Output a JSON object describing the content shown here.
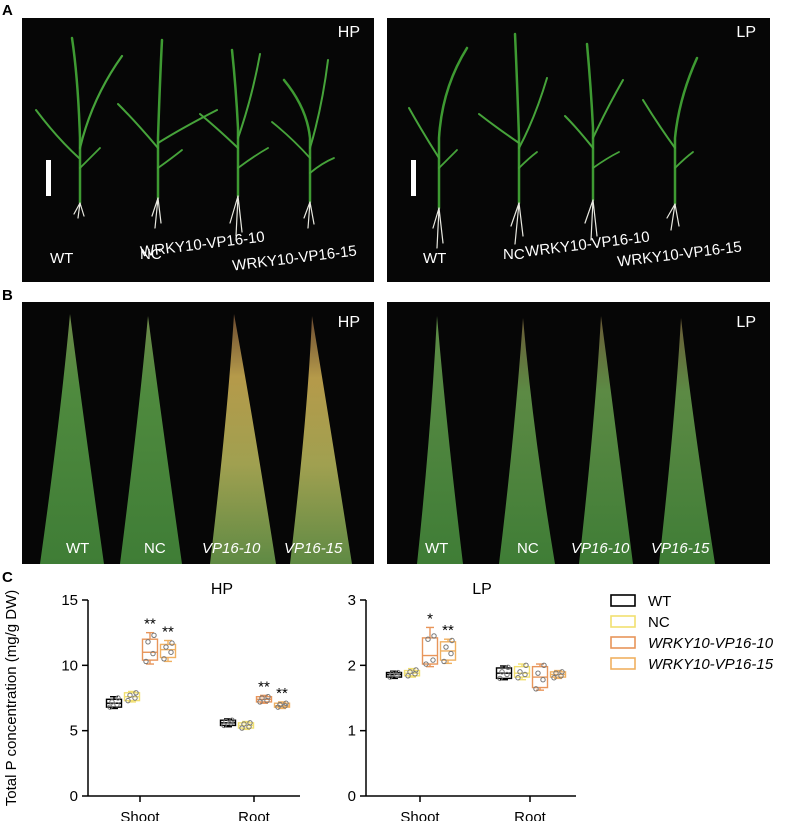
{
  "panel_labels": {
    "a": "A",
    "b": "B",
    "c": "C"
  },
  "panel_a": {
    "left": {
      "condition": "HP",
      "plants": [
        "WT",
        "NC",
        "WRKY10-VP16-10",
        "WRKY10-VP16-15"
      ]
    },
    "right": {
      "condition": "LP",
      "plants": [
        "WT",
        "NC",
        "WRKY10-VP16-10",
        "WRKY10-VP16-15"
      ]
    }
  },
  "panel_b": {
    "left": {
      "condition": "HP",
      "leaves": [
        "WT",
        "NC",
        "VP16-10",
        "VP16-15"
      ]
    },
    "right": {
      "condition": "LP",
      "leaves": [
        "WT",
        "NC",
        "VP16-10",
        "VP16-15"
      ]
    }
  },
  "chart_data": [
    {
      "type": "box",
      "title": "HP",
      "ylabel": "Total P concentration (mg/g DW)",
      "categories": [
        "Shoot",
        "Root"
      ],
      "ylim": [
        0,
        15
      ],
      "yticks": [
        0,
        5,
        10,
        15
      ],
      "series": [
        {
          "name": "WT",
          "color": "#000000",
          "boxes": [
            {
              "min": 6.7,
              "q1": 6.8,
              "median": 7.1,
              "q3": 7.4,
              "max": 7.6,
              "points": [
                6.8,
                7.0,
                7.2,
                7.5
              ],
              "sig": ""
            },
            {
              "min": 5.3,
              "q1": 5.4,
              "median": 5.6,
              "q3": 5.8,
              "max": 5.9,
              "points": [
                5.4,
                5.6,
                5.7,
                5.8
              ],
              "sig": ""
            }
          ]
        },
        {
          "name": "NC",
          "color": "#f2e070",
          "boxes": [
            {
              "min": 7.2,
              "q1": 7.3,
              "median": 7.6,
              "q3": 7.9,
              "max": 8.0,
              "points": [
                7.3,
                7.5,
                7.7,
                7.9
              ],
              "sig": ""
            },
            {
              "min": 5.1,
              "q1": 5.2,
              "median": 5.4,
              "q3": 5.6,
              "max": 5.7,
              "points": [
                5.2,
                5.3,
                5.5,
                5.6
              ],
              "sig": ""
            }
          ]
        },
        {
          "name": "WRKY10-VP16-10",
          "color": "#e8955a",
          "boxes": [
            {
              "min": 10.1,
              "q1": 10.4,
              "median": 11.0,
              "q3": 12.0,
              "max": 12.5,
              "points": [
                10.3,
                10.9,
                11.8,
                12.3
              ],
              "sig": "**"
            },
            {
              "min": 7.1,
              "q1": 7.2,
              "median": 7.4,
              "q3": 7.6,
              "max": 7.7,
              "points": [
                7.2,
                7.3,
                7.5,
                7.6
              ],
              "sig": "**"
            }
          ]
        },
        {
          "name": "WRKY10-VP16-15",
          "color": "#f0b060",
          "boxes": [
            {
              "min": 10.3,
              "q1": 10.6,
              "median": 11.2,
              "q3": 11.6,
              "max": 11.9,
              "points": [
                10.5,
                11.0,
                11.4,
                11.7
              ],
              "sig": "**"
            },
            {
              "min": 6.7,
              "q1": 6.8,
              "median": 6.9,
              "q3": 7.1,
              "max": 7.2,
              "points": [
                6.8,
                6.9,
                7.0,
                7.1
              ],
              "sig": "**"
            }
          ]
        }
      ]
    },
    {
      "type": "box",
      "title": "LP",
      "categories": [
        "Shoot",
        "Root"
      ],
      "ylim": [
        0,
        3
      ],
      "yticks": [
        0,
        1,
        2,
        3
      ],
      "series": [
        {
          "name": "WT",
          "color": "#000000",
          "boxes": [
            {
              "min": 1.8,
              "q1": 1.82,
              "median": 1.86,
              "q3": 1.89,
              "max": 1.91,
              "points": [
                1.82,
                1.85,
                1.87,
                1.89
              ],
              "sig": ""
            },
            {
              "min": 1.78,
              "q1": 1.8,
              "median": 1.88,
              "q3": 1.96,
              "max": 1.99,
              "points": [
                1.8,
                1.86,
                1.9,
                1.97
              ],
              "sig": ""
            }
          ]
        },
        {
          "name": "NC",
          "color": "#f2e070",
          "boxes": [
            {
              "min": 1.82,
              "q1": 1.84,
              "median": 1.88,
              "q3": 1.92,
              "max": 1.95,
              "points": [
                1.84,
                1.87,
                1.9,
                1.93
              ],
              "sig": ""
            },
            {
              "min": 1.78,
              "q1": 1.82,
              "median": 1.88,
              "q3": 1.98,
              "max": 2.02,
              "points": [
                1.81,
                1.86,
                1.9,
                2.0
              ],
              "sig": ""
            }
          ]
        },
        {
          "name": "WRKY10-VP16-10",
          "color": "#e8955a",
          "boxes": [
            {
              "min": 1.98,
              "q1": 2.02,
              "median": 2.15,
              "q3": 2.42,
              "max": 2.58,
              "points": [
                2.02,
                2.08,
                2.4,
                2.45
              ],
              "sig": "*"
            },
            {
              "min": 1.62,
              "q1": 1.66,
              "median": 1.82,
              "q3": 1.98,
              "max": 2.02,
              "points": [
                1.64,
                1.78,
                1.88,
                2.0
              ],
              "sig": ""
            }
          ]
        },
        {
          "name": "WRKY10-VP16-15",
          "color": "#f0b060",
          "boxes": [
            {
              "min": 2.03,
              "q1": 2.08,
              "median": 2.22,
              "q3": 2.36,
              "max": 2.4,
              "points": [
                2.06,
                2.18,
                2.28,
                2.38
              ],
              "sig": "**"
            },
            {
              "min": 1.8,
              "q1": 1.82,
              "median": 1.86,
              "q3": 1.9,
              "max": 1.92,
              "points": [
                1.81,
                1.84,
                1.88,
                1.9
              ],
              "sig": ""
            }
          ]
        }
      ]
    }
  ],
  "legend": [
    {
      "label": "WT",
      "italic": false,
      "color": "#000000"
    },
    {
      "label": "NC",
      "italic": false,
      "color": "#f2e070"
    },
    {
      "label": "WRKY10-VP16-10",
      "italic": true,
      "color": "#e8955a"
    },
    {
      "label": "WRKY10-VP16-15",
      "italic": true,
      "color": "#f0b060"
    }
  ]
}
